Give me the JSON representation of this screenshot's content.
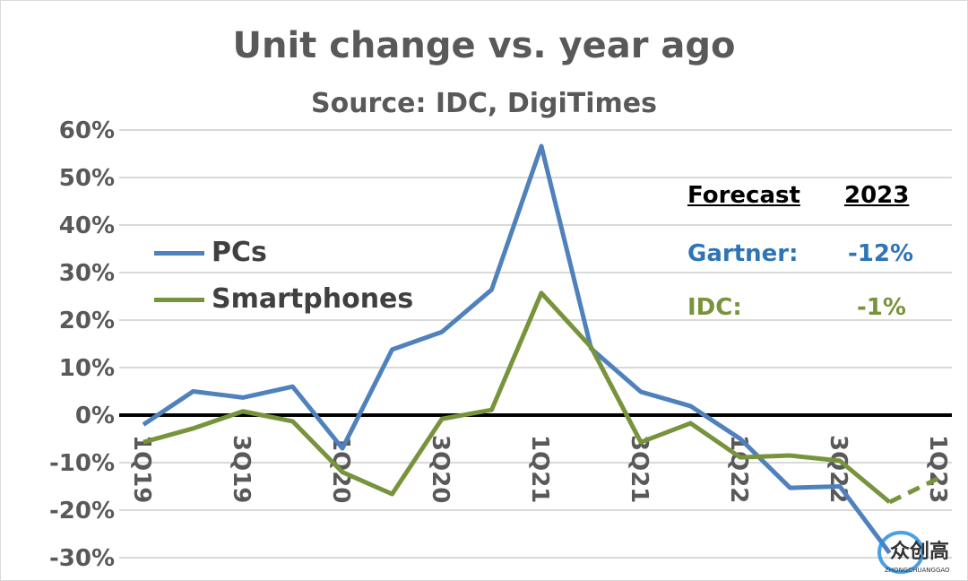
{
  "chart_data": {
    "type": "line",
    "title": "Unit change vs. year ago",
    "subtitle": "Source: IDC, DigiTimes",
    "x": [
      "1Q19",
      "2Q19",
      "3Q19",
      "4Q19",
      "1Q20",
      "2Q20",
      "3Q20",
      "4Q20",
      "1Q21",
      "2Q21",
      "3Q21",
      "4Q21",
      "1Q22",
      "2Q22",
      "3Q22",
      "4Q22",
      "1Q23"
    ],
    "tick_labels_x": [
      "1Q19",
      "3Q19",
      "1Q20",
      "3Q20",
      "1Q21",
      "3Q21",
      "1Q22",
      "3Q22",
      "1Q23"
    ],
    "tick_labels_y": [
      "60%",
      "50%",
      "40%",
      "30%",
      "20%",
      "10%",
      "0%",
      "-10%",
      "-20%",
      "-30%"
    ],
    "ylim": [
      -30,
      60
    ],
    "grid": true,
    "legend_position": "left",
    "series": [
      {
        "name": "PCs",
        "color": "#4f81bd",
        "values": [
          -2,
          5,
          3.7,
          6,
          -7,
          13.8,
          17.5,
          26.4,
          56.6,
          14,
          4.9,
          1.9,
          -5,
          -15.3,
          -15,
          -29,
          null
        ]
      },
      {
        "name": "Smartphones",
        "color": "#77933c",
        "values": [
          -5.7,
          -2.8,
          0.8,
          -1.3,
          -12,
          -16.6,
          -0.8,
          1.1,
          25.7,
          14.3,
          -5.7,
          -1.7,
          -8.9,
          -8.5,
          -9.6,
          -18.3,
          -13.2
        ],
        "dashed_from": "4Q22"
      }
    ],
    "annotations": {
      "forecast_header": "Forecast",
      "year_header": "2023",
      "rows": [
        {
          "label": "Gartner:",
          "value": "-12%",
          "color": "#2e75b6"
        },
        {
          "label": "IDC:",
          "value": "-1%",
          "color": "#77933c"
        }
      ]
    }
  },
  "watermark": {
    "text": "众创高",
    "subtext": "ZHONGCHUANGGAO"
  }
}
